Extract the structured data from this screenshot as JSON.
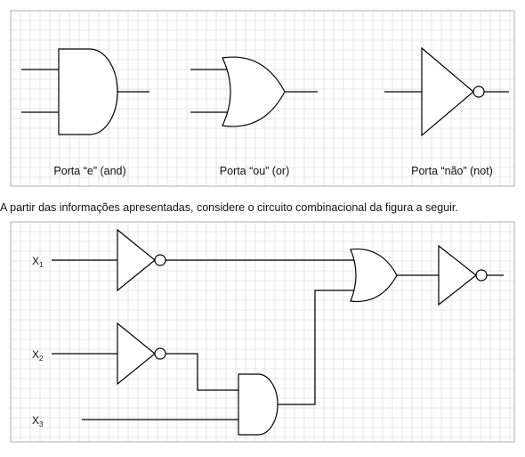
{
  "legend": {
    "and_label": "Porta “e” (and)",
    "or_label": "Porta “ou” (or)",
    "not_label": "Porta “não” (not)"
  },
  "caption": "A partir das informações apresentadas, considere o circuito combinacional da figura a seguir.",
  "circuit": {
    "x1_main": "X",
    "x1_sub": "1",
    "x2_main": "X",
    "x2_sub": "2",
    "x3_main": "X",
    "x3_sub": "3"
  }
}
